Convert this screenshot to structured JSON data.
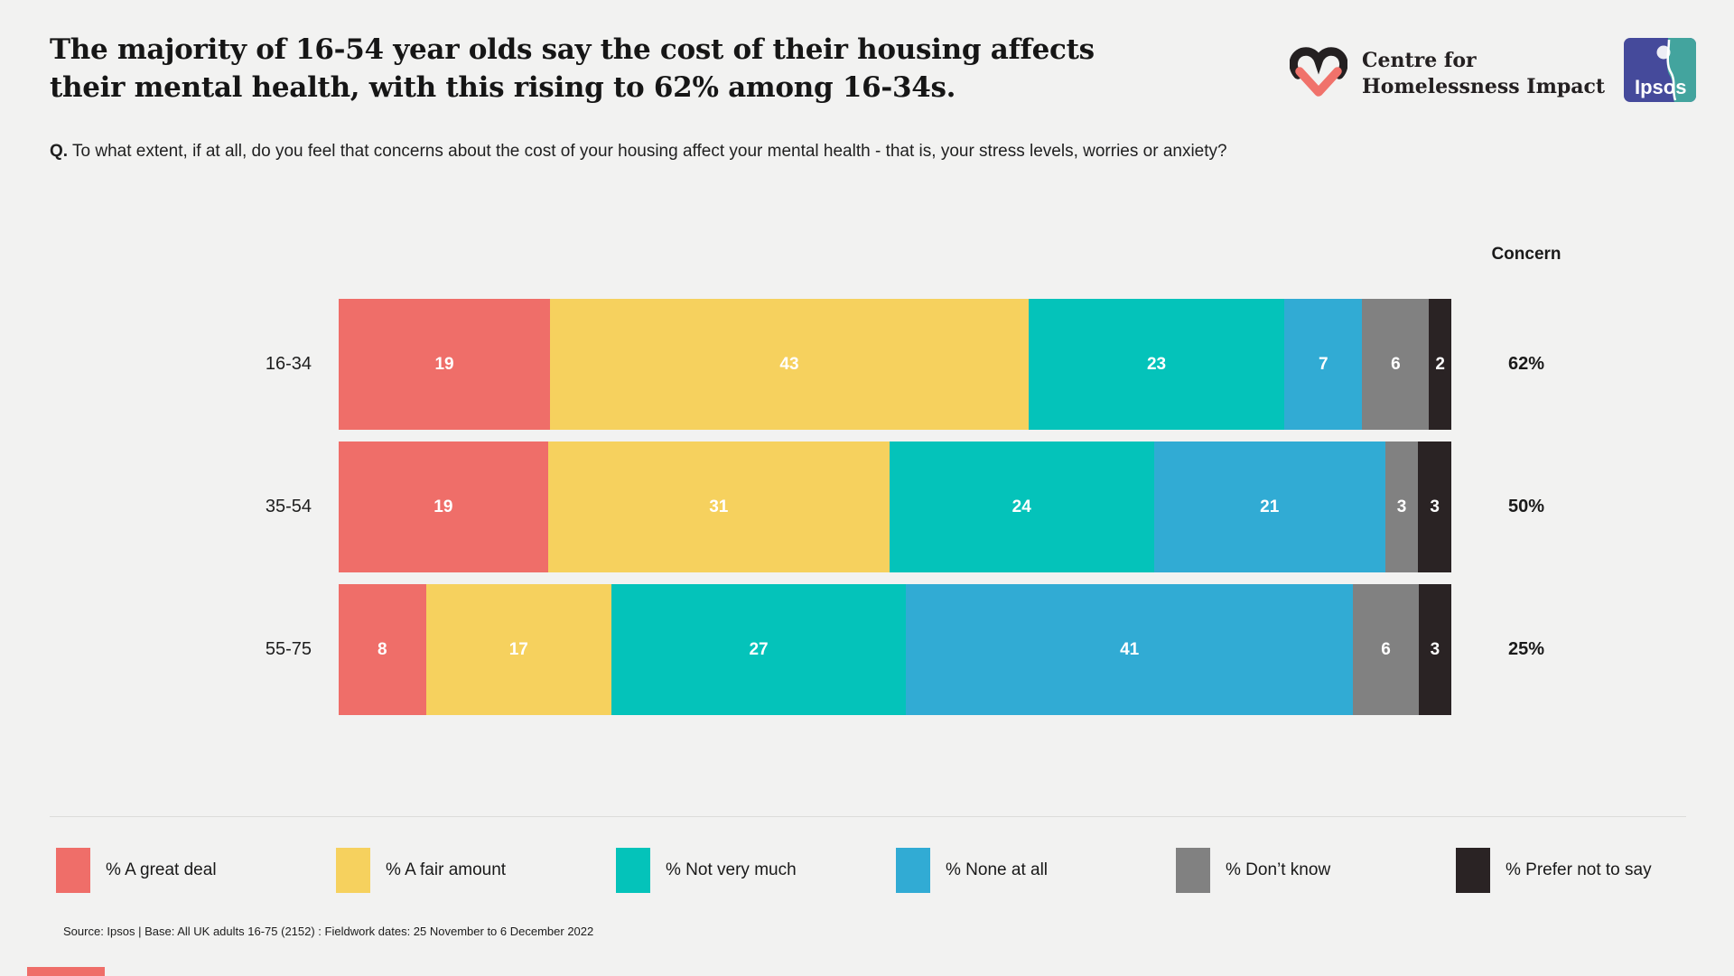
{
  "header": {
    "title_line1": "The majority of 16-54 year olds say the cost of their housing affects",
    "title_line2": "their mental health, with this rising to 62% among 16-34s.",
    "question_prefix": "Q.",
    "question_text": "To what extent, if at all, do you feel that concerns about the cost of your housing affect your mental health - that is, your stress levels, worries or anxiety?"
  },
  "logos": {
    "chi_line1": "Centre for",
    "chi_line2": "Homelessness Impact",
    "ipsos_label": "Ipsos",
    "chi_heart_black": "#242021",
    "chi_heart_coral": "#f0726b",
    "ipsos_navy": "#454a9b",
    "ipsos_teal": "#43a49e"
  },
  "chart_data": {
    "type": "bar",
    "stacked": true,
    "orientation": "horizontal",
    "title": "Cost of housing effect on mental health by age group",
    "categories": [
      "16-34",
      "35-54",
      "55-75"
    ],
    "series": [
      {
        "name": "% A great deal",
        "color": "#ef6e69",
        "values": [
          19,
          19,
          8
        ]
      },
      {
        "name": "% A fair amount",
        "color": "#f6d15e",
        "values": [
          43,
          31,
          17
        ]
      },
      {
        "name": "% Not very much",
        "color": "#04c3ba",
        "values": [
          23,
          24,
          27
        ]
      },
      {
        "name": "% None at all",
        "color": "#31abd4",
        "values": [
          7,
          21,
          41
        ]
      },
      {
        "name": "% Don’t know",
        "color": "#818181",
        "values": [
          6,
          3,
          6
        ]
      },
      {
        "name": "% Prefer not to say",
        "color": "#2a2324",
        "values": [
          2,
          3,
          3
        ]
      }
    ],
    "concern_header": "Concern",
    "concern_values": [
      "62%",
      "50%",
      "25%"
    ],
    "xlim": [
      0,
      100
    ],
    "grid": false,
    "legend_position": "bottom"
  },
  "footer": {
    "source": "Source: Ipsos | Base: All UK adults 16-75 (2152) : Fieldwork dates: 25 November to 6 December 2022"
  }
}
